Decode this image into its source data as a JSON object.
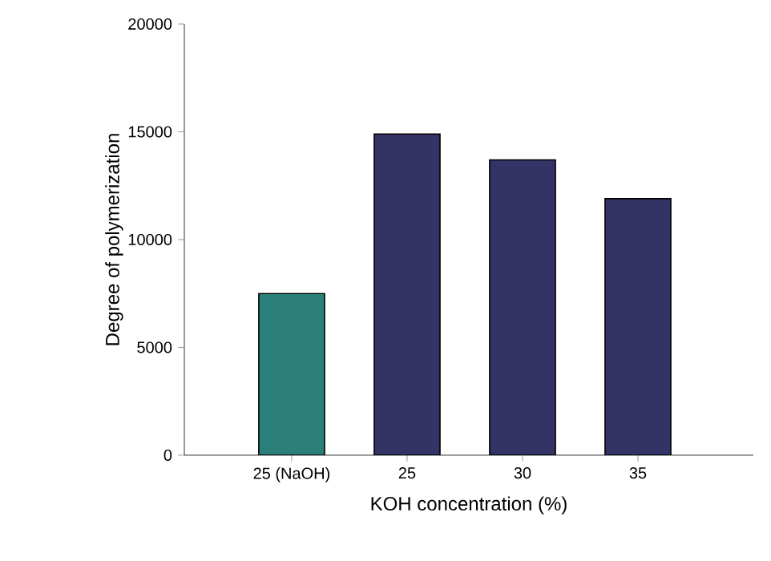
{
  "chart_data": {
    "type": "bar",
    "xlabel": "KOH concentration (%)",
    "ylabel": "Degree of polymerization",
    "categories": [
      "25 (NaOH)",
      "25",
      "30",
      "35"
    ],
    "values": [
      7500,
      14900,
      13700,
      11900
    ],
    "colors": [
      "#2a8078",
      "#333366",
      "#333366",
      "#333366"
    ],
    "ylim": [
      0,
      20000
    ],
    "yticks": [
      0,
      5000,
      10000,
      15000,
      20000
    ],
    "grid": false
  }
}
